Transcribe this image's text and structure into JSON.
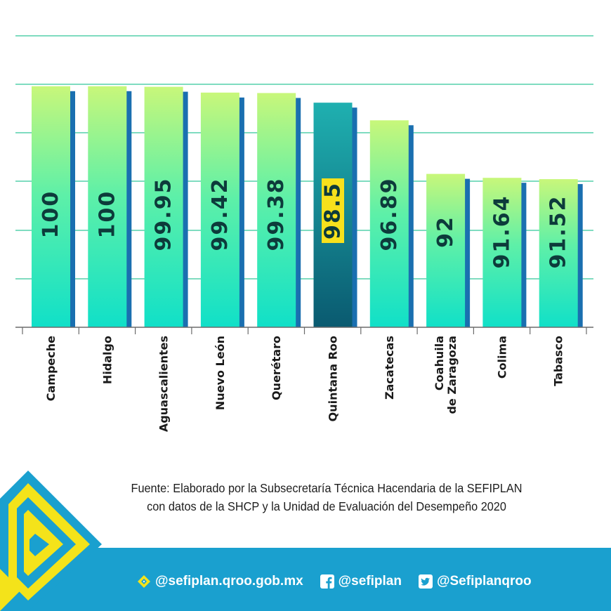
{
  "chart_data": {
    "type": "bar",
    "categories": [
      "Campeche",
      "Hidalgo",
      "Aguascalientes",
      "Nuevo León",
      "Querétaro",
      "Quintana Roo",
      "Zacatecas",
      "Coahuila de Zaragoza",
      "Colima",
      "Tabasco"
    ],
    "category_lines": [
      [
        "Campeche"
      ],
      [
        "Hidalgo"
      ],
      [
        "Aguascalientes"
      ],
      [
        "Nuevo León"
      ],
      [
        "Querétaro"
      ],
      [
        "Quintana Roo"
      ],
      [
        "Zacatecas"
      ],
      [
        "Coahuila",
        "de Zaragoza"
      ],
      [
        "Colima"
      ],
      [
        "Tabasco"
      ]
    ],
    "values": [
      100,
      100,
      99.95,
      99.42,
      99.38,
      98.5,
      96.89,
      92,
      91.64,
      91.52
    ],
    "value_labels": [
      "100",
      "100",
      "99.95",
      "99.42",
      "99.38",
      "98.5",
      "96.89",
      "92",
      "91.64",
      "91.52"
    ],
    "highlight_index": 5,
    "grid": true,
    "colors": {
      "bar_top": "#c8f77a",
      "bar_mid": "#5ef0a8",
      "bar_bottom": "#10e0c8",
      "bar_shadow": "#1a6fb0",
      "highlight_top": "#1fb0b0",
      "highlight_bottom": "#0a5a70",
      "highlight_label_bg": "#f7e11c",
      "gridline": "#7fdcc0",
      "value_text": "#0d3b3b"
    }
  },
  "source": {
    "line1": "Fuente: Elaborado por la Subsecretaría Técnica Hacendaria de la SEFIPLAN",
    "line2": "con datos de la SHCP y la Unidad de Evaluación del Desempeño 2020"
  },
  "footer": {
    "background": "#1aa0cf",
    "web": "@sefiplan.qroo.gob.mx",
    "facebook": "@sefiplan",
    "twitter": "@Sefiplanqroo",
    "icons": [
      "web-icon",
      "facebook-icon",
      "twitter-icon"
    ]
  }
}
